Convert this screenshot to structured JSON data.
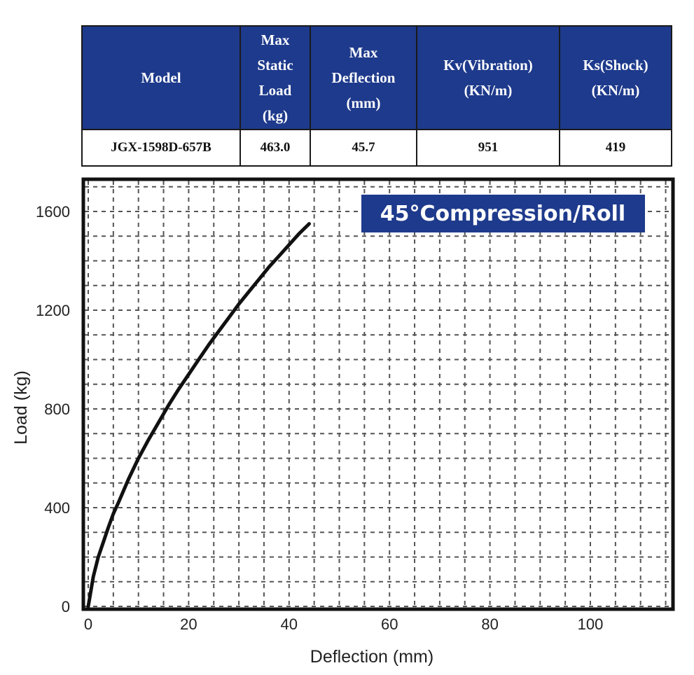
{
  "spec_table": {
    "headers": [
      [
        "Model"
      ],
      [
        "Max",
        "Static",
        "Load",
        "(kg)"
      ],
      [
        "Max",
        "Deflection",
        "(mm)"
      ],
      [
        "Kv(Vibration)",
        "(KN/m)"
      ],
      [
        "Ks(Shock)",
        "(KN/m)"
      ]
    ],
    "row": [
      "JGX-1598D-657B",
      "463.0",
      "45.7",
      "951",
      "419"
    ],
    "header_color": "#1e3a8c"
  },
  "chart_data": {
    "type": "line",
    "title": "45°Compression/Roll",
    "title_bg_color": "#1e3a8c",
    "xlabel": "Deflection (mm)",
    "ylabel": "Load (kg)",
    "xlim": [
      0,
      115
    ],
    "ylim": [
      0,
      1700
    ],
    "xticks": [
      0,
      20,
      40,
      60,
      80,
      100
    ],
    "yticks": [
      0,
      400,
      800,
      1200,
      1600
    ],
    "grid": true,
    "series": [
      {
        "color": "#111111",
        "x": [
          0,
          1,
          2,
          3,
          4,
          5,
          6,
          8,
          10,
          12,
          14,
          16,
          18,
          20,
          22,
          24,
          26,
          28,
          30,
          32,
          34,
          36,
          38,
          40,
          42,
          44
        ],
        "y": [
          0,
          120,
          200,
          260,
          320,
          375,
          420,
          515,
          600,
          675,
          745,
          815,
          880,
          940,
          1000,
          1060,
          1115,
          1170,
          1225,
          1275,
          1325,
          1375,
          1420,
          1465,
          1510,
          1550
        ]
      }
    ]
  }
}
